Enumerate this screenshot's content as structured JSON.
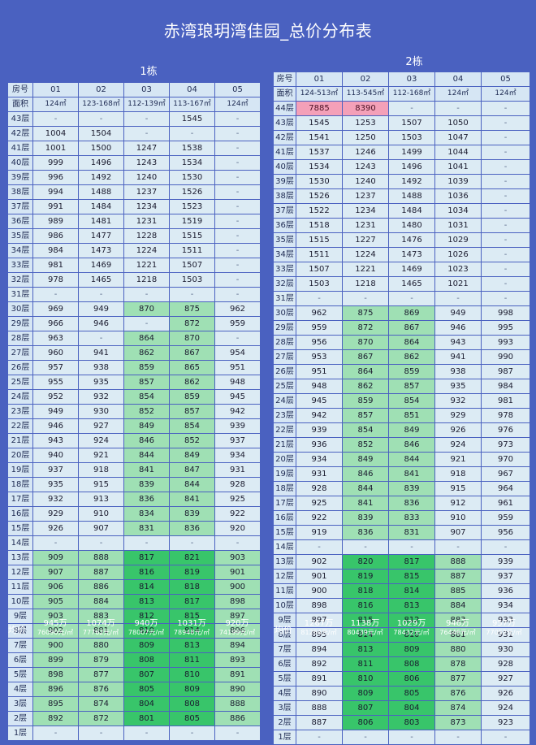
{
  "title": "赤湾琅玥湾佳园_总价分布表",
  "left": {
    "label": "1栋",
    "room_label": "房号",
    "area_label": "面积",
    "rooms": [
      "01",
      "02",
      "03",
      "04",
      "05"
    ],
    "areas": [
      "124㎡",
      "123-168㎡",
      "112-139㎡",
      "113-167㎡",
      "124㎡"
    ],
    "avg_label": "均价",
    "avg": [
      {
        "price": "945万",
        "unit": "76090元/㎡"
      },
      {
        "price": "1074万",
        "unit": "77762元/㎡"
      },
      {
        "price": "940万",
        "unit": "78007元/㎡"
      },
      {
        "price": "1031万",
        "unit": "78948元/㎡"
      },
      {
        "price": "920万",
        "unit": "74199元/㎡"
      }
    ]
  },
  "right": {
    "label": "2栋",
    "room_label": "房号",
    "area_label": "面积",
    "rooms": [
      "01",
      "02",
      "03",
      "04",
      "05"
    ],
    "areas": [
      "124-513㎡",
      "113-545㎡",
      "112-168㎡",
      "124㎡",
      "124㎡"
    ],
    "avg_label": "均价",
    "avg": [
      {
        "price": "1267万",
        "unit": "81264元/㎡"
      },
      {
        "price": "1138万",
        "unit": "80439元/㎡"
      },
      {
        "price": "1029万",
        "unit": "78432元/㎡"
      },
      {
        "price": "946万",
        "unit": "76446元/㎡"
      },
      {
        "price": "957万",
        "unit": "77052元/㎡"
      }
    ]
  },
  "left_rows": [
    {
      "floor": "43层",
      "cells": [
        "-",
        "-",
        "-",
        "1545",
        "-"
      ]
    },
    {
      "floor": "42层",
      "cells": [
        "1004",
        "1504",
        "-",
        "-",
        "-"
      ]
    },
    {
      "floor": "41层",
      "cells": [
        "1001",
        "1500",
        "1247",
        "1538",
        "-"
      ]
    },
    {
      "floor": "40层",
      "cells": [
        "999",
        "1496",
        "1243",
        "1534",
        "-"
      ]
    },
    {
      "floor": "39层",
      "cells": [
        "996",
        "1492",
        "1240",
        "1530",
        "-"
      ]
    },
    {
      "floor": "38层",
      "cells": [
        "994",
        "1488",
        "1237",
        "1526",
        "-"
      ]
    },
    {
      "floor": "37层",
      "cells": [
        "991",
        "1484",
        "1234",
        "1523",
        "-"
      ]
    },
    {
      "floor": "36层",
      "cells": [
        "989",
        "1481",
        "1231",
        "1519",
        "-"
      ]
    },
    {
      "floor": "35层",
      "cells": [
        "986",
        "1477",
        "1228",
        "1515",
        "-"
      ]
    },
    {
      "floor": "34层",
      "cells": [
        "984",
        "1473",
        "1224",
        "1511",
        "-"
      ]
    },
    {
      "floor": "33层",
      "cells": [
        "981",
        "1469",
        "1221",
        "1507",
        "-"
      ]
    },
    {
      "floor": "32层",
      "cells": [
        "978",
        "1465",
        "1218",
        "1503",
        "-"
      ]
    },
    {
      "floor": "31层",
      "cells": [
        "-",
        "-",
        "-",
        "-",
        "-"
      ]
    },
    {
      "floor": "30层",
      "cells": [
        "969",
        "949",
        "870",
        "875",
        "962"
      ]
    },
    {
      "floor": "29层",
      "cells": [
        "966",
        "946",
        "-",
        "872",
        "959"
      ]
    },
    {
      "floor": "28层",
      "cells": [
        "963",
        "-",
        "864",
        "870",
        "-"
      ]
    },
    {
      "floor": "27层",
      "cells": [
        "960",
        "941",
        "862",
        "867",
        "954"
      ]
    },
    {
      "floor": "26层",
      "cells": [
        "957",
        "938",
        "859",
        "865",
        "951"
      ]
    },
    {
      "floor": "25层",
      "cells": [
        "955",
        "935",
        "857",
        "862",
        "948"
      ]
    },
    {
      "floor": "24层",
      "cells": [
        "952",
        "932",
        "854",
        "859",
        "945"
      ]
    },
    {
      "floor": "23层",
      "cells": [
        "949",
        "930",
        "852",
        "857",
        "942"
      ]
    },
    {
      "floor": "22层",
      "cells": [
        "946",
        "927",
        "849",
        "854",
        "939"
      ]
    },
    {
      "floor": "21层",
      "cells": [
        "943",
        "924",
        "846",
        "852",
        "937"
      ]
    },
    {
      "floor": "20层",
      "cells": [
        "940",
        "921",
        "844",
        "849",
        "934"
      ]
    },
    {
      "floor": "19层",
      "cells": [
        "937",
        "918",
        "841",
        "847",
        "931"
      ]
    },
    {
      "floor": "18层",
      "cells": [
        "935",
        "915",
        "839",
        "844",
        "928"
      ]
    },
    {
      "floor": "17层",
      "cells": [
        "932",
        "913",
        "836",
        "841",
        "925"
      ]
    },
    {
      "floor": "16层",
      "cells": [
        "929",
        "910",
        "834",
        "839",
        "922"
      ]
    },
    {
      "floor": "15层",
      "cells": [
        "926",
        "907",
        "831",
        "836",
        "920"
      ]
    },
    {
      "floor": "14层",
      "cells": [
        "-",
        "-",
        "-",
        "-",
        "-"
      ]
    },
    {
      "floor": "13层",
      "cells": [
        "909",
        "888",
        "817",
        "821",
        "903"
      ]
    },
    {
      "floor": "12层",
      "cells": [
        "907",
        "887",
        "816",
        "819",
        "901"
      ]
    },
    {
      "floor": "11层",
      "cells": [
        "906",
        "886",
        "814",
        "818",
        "900"
      ]
    },
    {
      "floor": "10层",
      "cells": [
        "905",
        "884",
        "813",
        "817",
        "898"
      ]
    },
    {
      "floor": "9层",
      "cells": [
        "903",
        "883",
        "812",
        "815",
        "897"
      ]
    },
    {
      "floor": "8层",
      "cells": [
        "902",
        "881",
        "810",
        "814",
        "896"
      ]
    },
    {
      "floor": "7层",
      "cells": [
        "900",
        "880",
        "809",
        "813",
        "894"
      ]
    },
    {
      "floor": "6层",
      "cells": [
        "899",
        "879",
        "808",
        "811",
        "893"
      ]
    },
    {
      "floor": "5层",
      "cells": [
        "898",
        "877",
        "807",
        "810",
        "891"
      ]
    },
    {
      "floor": "4层",
      "cells": [
        "896",
        "876",
        "805",
        "809",
        "890"
      ]
    },
    {
      "floor": "3层",
      "cells": [
        "895",
        "874",
        "804",
        "808",
        "888"
      ]
    },
    {
      "floor": "2层",
      "cells": [
        "892",
        "872",
        "801",
        "805",
        "886"
      ]
    },
    {
      "floor": "1层",
      "cells": [
        "-",
        "-",
        "-",
        "-",
        "-"
      ]
    }
  ],
  "right_rows": [
    {
      "floor": "44层",
      "cells": [
        "7885",
        "8390",
        "-",
        "-",
        "-"
      ]
    },
    {
      "floor": "43层",
      "cells": [
        "1545",
        "1253",
        "1507",
        "1050",
        "-"
      ]
    },
    {
      "floor": "42层",
      "cells": [
        "1541",
        "1250",
        "1503",
        "1047",
        "-"
      ]
    },
    {
      "floor": "41层",
      "cells": [
        "1537",
        "1246",
        "1499",
        "1044",
        "-"
      ]
    },
    {
      "floor": "40层",
      "cells": [
        "1534",
        "1243",
        "1496",
        "1041",
        "-"
      ]
    },
    {
      "floor": "39层",
      "cells": [
        "1530",
        "1240",
        "1492",
        "1039",
        "-"
      ]
    },
    {
      "floor": "38层",
      "cells": [
        "1526",
        "1237",
        "1488",
        "1036",
        "-"
      ]
    },
    {
      "floor": "37层",
      "cells": [
        "1522",
        "1234",
        "1484",
        "1034",
        "-"
      ]
    },
    {
      "floor": "36层",
      "cells": [
        "1518",
        "1231",
        "1480",
        "1031",
        "-"
      ]
    },
    {
      "floor": "35层",
      "cells": [
        "1515",
        "1227",
        "1476",
        "1029",
        "-"
      ]
    },
    {
      "floor": "34层",
      "cells": [
        "1511",
        "1224",
        "1473",
        "1026",
        "-"
      ]
    },
    {
      "floor": "33层",
      "cells": [
        "1507",
        "1221",
        "1469",
        "1023",
        "-"
      ]
    },
    {
      "floor": "32层",
      "cells": [
        "1503",
        "1218",
        "1465",
        "1021",
        "-"
      ]
    },
    {
      "floor": "31层",
      "cells": [
        "-",
        "-",
        "-",
        "-",
        "-"
      ]
    },
    {
      "floor": "30层",
      "cells": [
        "962",
        "875",
        "869",
        "949",
        "998"
      ]
    },
    {
      "floor": "29层",
      "cells": [
        "959",
        "872",
        "867",
        "946",
        "995"
      ]
    },
    {
      "floor": "28层",
      "cells": [
        "956",
        "870",
        "864",
        "943",
        "993"
      ]
    },
    {
      "floor": "27层",
      "cells": [
        "953",
        "867",
        "862",
        "941",
        "990"
      ]
    },
    {
      "floor": "26层",
      "cells": [
        "951",
        "864",
        "859",
        "938",
        "987"
      ]
    },
    {
      "floor": "25层",
      "cells": [
        "948",
        "862",
        "857",
        "935",
        "984"
      ]
    },
    {
      "floor": "24层",
      "cells": [
        "945",
        "859",
        "854",
        "932",
        "981"
      ]
    },
    {
      "floor": "23层",
      "cells": [
        "942",
        "857",
        "851",
        "929",
        "978"
      ]
    },
    {
      "floor": "22层",
      "cells": [
        "939",
        "854",
        "849",
        "926",
        "976"
      ]
    },
    {
      "floor": "21层",
      "cells": [
        "936",
        "852",
        "846",
        "924",
        "973"
      ]
    },
    {
      "floor": "20层",
      "cells": [
        "934",
        "849",
        "844",
        "921",
        "970"
      ]
    },
    {
      "floor": "19层",
      "cells": [
        "931",
        "846",
        "841",
        "918",
        "967"
      ]
    },
    {
      "floor": "18层",
      "cells": [
        "928",
        "844",
        "839",
        "915",
        "964"
      ]
    },
    {
      "floor": "17层",
      "cells": [
        "925",
        "841",
        "836",
        "912",
        "961"
      ]
    },
    {
      "floor": "16层",
      "cells": [
        "922",
        "839",
        "833",
        "910",
        "959"
      ]
    },
    {
      "floor": "15层",
      "cells": [
        "919",
        "836",
        "831",
        "907",
        "956"
      ]
    },
    {
      "floor": "14层",
      "cells": [
        "-",
        "-",
        "-",
        "-",
        "-"
      ]
    },
    {
      "floor": "13层",
      "cells": [
        "902",
        "820",
        "817",
        "888",
        "939"
      ]
    },
    {
      "floor": "12层",
      "cells": [
        "901",
        "819",
        "815",
        "887",
        "937"
      ]
    },
    {
      "floor": "11层",
      "cells": [
        "900",
        "818",
        "814",
        "885",
        "936"
      ]
    },
    {
      "floor": "10层",
      "cells": [
        "898",
        "816",
        "813",
        "884",
        "934"
      ]
    },
    {
      "floor": "9层",
      "cells": [
        "897",
        "815",
        "812",
        "883",
        "933"
      ]
    },
    {
      "floor": "8层",
      "cells": [
        "895",
        "814",
        "810",
        "881",
        "931"
      ]
    },
    {
      "floor": "7层",
      "cells": [
        "894",
        "813",
        "809",
        "880",
        "930"
      ]
    },
    {
      "floor": "6层",
      "cells": [
        "892",
        "811",
        "808",
        "878",
        "928"
      ]
    },
    {
      "floor": "5层",
      "cells": [
        "891",
        "810",
        "806",
        "877",
        "927"
      ]
    },
    {
      "floor": "4层",
      "cells": [
        "890",
        "809",
        "805",
        "876",
        "926"
      ]
    },
    {
      "floor": "3层",
      "cells": [
        "888",
        "807",
        "804",
        "874",
        "924"
      ]
    },
    {
      "floor": "2层",
      "cells": [
        "887",
        "806",
        "803",
        "873",
        "923"
      ]
    },
    {
      "floor": "1层",
      "cells": [
        "-",
        "-",
        "-",
        "-",
        "-"
      ]
    }
  ],
  "colors": {
    "background": "#4a61c0",
    "light": "#dcebf4",
    "mid_green": "#9fe0b4",
    "dark_green": "#38c56a",
    "pink": "#f4a0b8"
  }
}
